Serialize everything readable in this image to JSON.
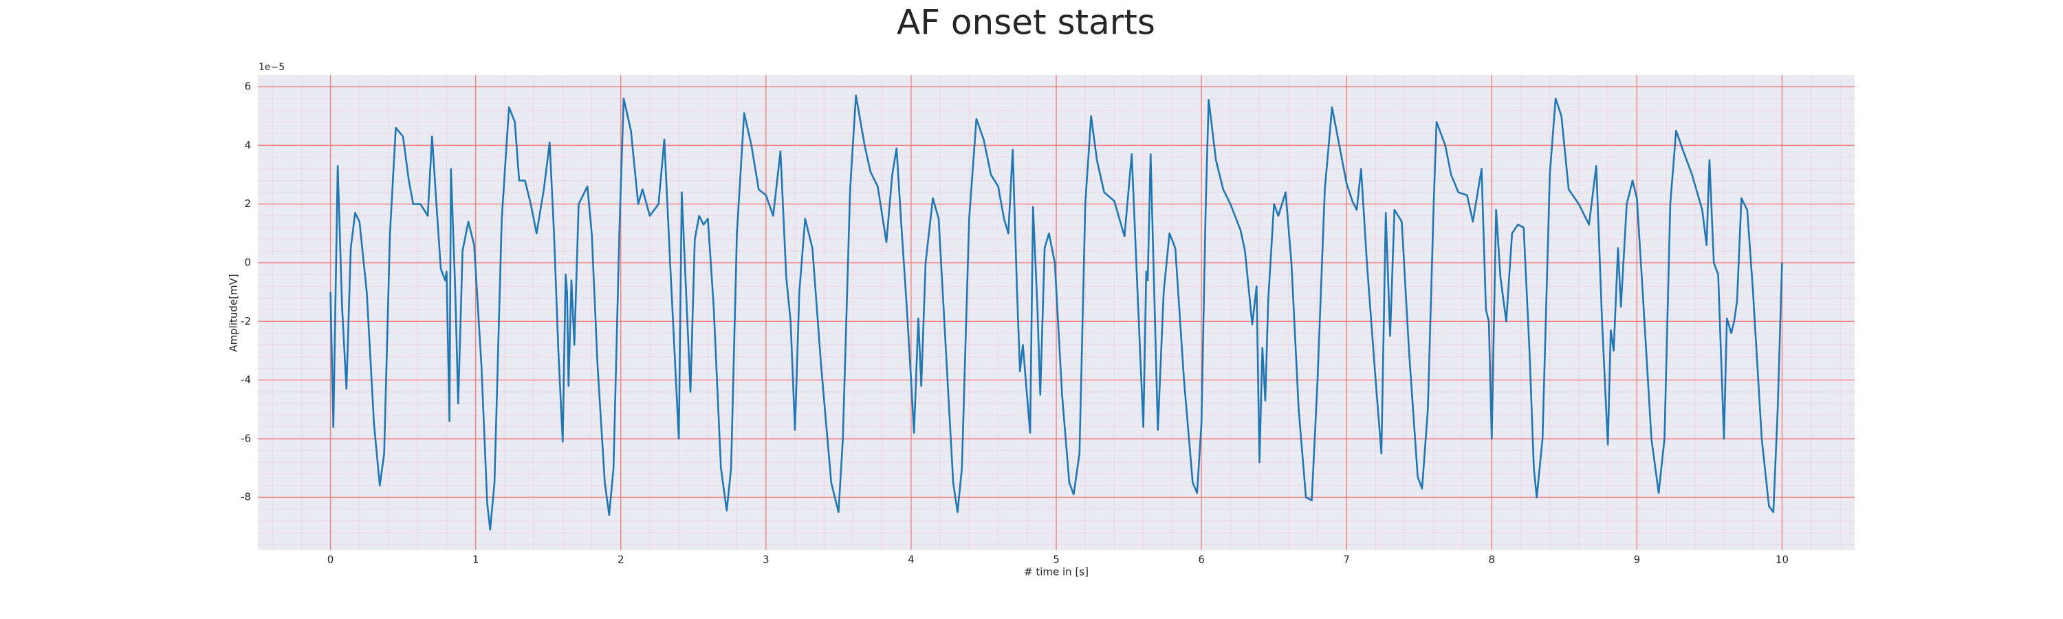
{
  "chart_data": {
    "type": "line",
    "title": "AF onset starts",
    "x_label": "# time in [s]",
    "y_label": "Amplitude[mV]",
    "y_offset_label": "1e−5",
    "xlim": [
      -0.5,
      10.5
    ],
    "xticks": [
      0,
      1,
      2,
      3,
      4,
      5,
      6,
      7,
      8,
      9,
      10
    ],
    "ylim": [
      -9.8,
      6.4
    ],
    "yticks": [
      -8,
      -6,
      -4,
      -2,
      0,
      2,
      4,
      6
    ],
    "grid": true,
    "minor_grid": true,
    "color": "#1f77b4",
    "x": [
      0,
      0.02,
      0.05,
      0.08,
      0.11,
      0.14,
      0.17,
      0.2,
      0.25,
      0.3,
      0.34,
      0.37,
      0.41,
      0.45,
      0.5,
      0.54,
      0.57,
      0.62,
      0.67,
      0.7,
      0.73,
      0.76,
      0.79,
      0.8,
      0.82,
      0.83,
      0.86,
      0.88,
      0.91,
      0.95,
      0.99,
      1.04,
      1.08,
      1.1,
      1.13,
      1.18,
      1.23,
      1.27,
      1.3,
      1.34,
      1.38,
      1.42,
      1.47,
      1.51,
      1.54,
      1.57,
      1.6,
      1.62,
      1.63,
      1.64,
      1.66,
      1.68,
      1.71,
      1.77,
      1.8,
      1.84,
      1.89,
      1.92,
      1.95,
      1.99,
      2.02,
      2.07,
      2.12,
      2.15,
      2.2,
      2.26,
      2.3,
      2.34,
      2.37,
      2.4,
      2.42,
      2.45,
      2.48,
      2.51,
      2.54,
      2.57,
      2.6,
      2.64,
      2.69,
      2.73,
      2.76,
      2.8,
      2.85,
      2.9,
      2.95,
      3.0,
      3.05,
      3.1,
      3.14,
      3.17,
      3.2,
      3.23,
      3.27,
      3.32,
      3.38,
      3.45,
      3.5,
      3.53,
      3.58,
      3.62,
      3.68,
      3.72,
      3.77,
      3.83,
      3.87,
      3.9,
      3.93,
      3.97,
      4.0,
      4.02,
      4.05,
      4.07,
      4.1,
      4.15,
      4.19,
      4.24,
      4.29,
      4.32,
      4.35,
      4.4,
      4.45,
      4.5,
      4.55,
      4.6,
      4.64,
      4.67,
      4.7,
      4.73,
      4.75,
      4.77,
      4.82,
      4.84,
      4.87,
      4.89,
      4.92,
      4.95,
      4.99,
      5.04,
      5.09,
      5.12,
      5.16,
      5.2,
      5.24,
      5.28,
      5.33,
      5.4,
      5.47,
      5.52,
      5.56,
      5.6,
      5.62,
      5.63,
      5.65,
      5.7,
      5.74,
      5.78,
      5.82,
      5.88,
      5.94,
      5.97,
      6.0,
      6.03,
      6.05,
      6.1,
      6.15,
      6.2,
      6.27,
      6.3,
      6.35,
      6.38,
      6.4,
      6.42,
      6.44,
      6.46,
      6.5,
      6.53,
      6.58,
      6.62,
      6.67,
      6.72,
      6.76,
      6.8,
      6.85,
      6.9,
      6.95,
      7.0,
      7.04,
      7.07,
      7.1,
      7.14,
      7.2,
      7.24,
      7.27,
      7.3,
      7.33,
      7.38,
      7.43,
      7.49,
      7.52,
      7.56,
      7.6,
      7.62,
      7.68,
      7.72,
      7.77,
      7.83,
      7.87,
      7.93,
      7.96,
      7.98,
      8.0,
      8.03,
      8.06,
      8.1,
      8.14,
      8.18,
      8.22,
      8.26,
      8.29,
      8.31,
      8.35,
      8.4,
      8.44,
      8.48,
      8.53,
      8.6,
      8.67,
      8.72,
      8.76,
      8.8,
      8.82,
      8.84,
      8.87,
      8.89,
      8.93,
      8.97,
      9.0,
      9.04,
      9.1,
      9.15,
      9.19,
      9.23,
      9.27,
      9.32,
      9.38,
      9.45,
      9.48,
      9.5,
      9.53,
      9.56,
      9.6,
      9.62,
      9.65,
      9.67,
      9.69,
      9.72,
      9.76,
      9.8,
      9.86,
      9.91,
      9.94,
      9.97,
      10.0
    ],
    "values": [
      -1.0,
      -5.6,
      3.3,
      -1.5,
      -4.3,
      0.5,
      1.7,
      1.4,
      -1.0,
      -5.5,
      -7.6,
      -6.5,
      1.0,
      4.6,
      4.3,
      2.8,
      2.0,
      2.0,
      1.6,
      4.3,
      2.0,
      -0.2,
      -0.6,
      -0.3,
      -5.4,
      3.2,
      -1.0,
      -4.8,
      0.4,
      1.4,
      0.6,
      -3.5,
      -8.2,
      -9.1,
      -7.5,
      1.5,
      5.3,
      4.8,
      2.8,
      2.8,
      2.0,
      1.0,
      2.5,
      4.1,
      1.0,
      -3.0,
      -6.1,
      -0.4,
      -1.0,
      -4.2,
      -0.6,
      -2.8,
      2.0,
      2.6,
      1.0,
      -3.5,
      -7.5,
      -8.6,
      -7.0,
      1.0,
      5.6,
      4.5,
      2.0,
      2.5,
      1.6,
      2.0,
      4.2,
      0.0,
      -3.0,
      -6.0,
      2.4,
      -1.0,
      -4.4,
      0.8,
      1.6,
      1.3,
      1.5,
      -1.5,
      -7.0,
      -8.45,
      -7.0,
      1.0,
      5.1,
      4.0,
      2.5,
      2.3,
      1.6,
      3.8,
      -0.5,
      -2.0,
      -5.7,
      -1.0,
      1.5,
      0.5,
      -3.5,
      -7.5,
      -8.5,
      -6.0,
      2.5,
      5.7,
      4.0,
      3.1,
      2.6,
      0.7,
      3.0,
      3.9,
      1.5,
      -1.5,
      -4.0,
      -5.8,
      -1.9,
      -4.2,
      0.0,
      2.2,
      1.5,
      -3.0,
      -7.5,
      -8.5,
      -7.0,
      1.5,
      4.9,
      4.2,
      3.0,
      2.6,
      1.5,
      1.0,
      3.85,
      -1.0,
      -3.7,
      -2.8,
      -5.8,
      1.9,
      -1.5,
      -4.5,
      0.5,
      1.0,
      0.0,
      -4.5,
      -7.5,
      -7.9,
      -6.5,
      2.0,
      5.0,
      3.5,
      2.4,
      2.1,
      0.9,
      3.7,
      -1.0,
      -5.6,
      -0.3,
      -0.6,
      3.7,
      -5.7,
      -1.0,
      1.0,
      0.5,
      -4.0,
      -7.5,
      -7.85,
      -5.5,
      2.0,
      5.55,
      3.5,
      2.5,
      2.0,
      1.1,
      0.4,
      -2.1,
      -0.8,
      -6.8,
      -2.9,
      -4.7,
      -1.3,
      2.0,
      1.6,
      2.4,
      0.0,
      -5.0,
      -8.0,
      -8.1,
      -4.0,
      2.5,
      5.3,
      4.0,
      2.7,
      2.1,
      1.8,
      3.2,
      0.0,
      -4.0,
      -6.5,
      1.7,
      -2.5,
      1.8,
      1.4,
      -3.0,
      -7.3,
      -7.7,
      -5.0,
      2.0,
      4.8,
      4.0,
      3.0,
      2.4,
      2.3,
      1.4,
      3.2,
      -1.6,
      -2.0,
      -6.0,
      1.8,
      -0.5,
      -2.0,
      1.0,
      1.3,
      1.2,
      -3.0,
      -7.0,
      -8.0,
      -6.0,
      3.0,
      5.6,
      5.0,
      2.5,
      2.0,
      1.3,
      3.3,
      -2.0,
      -6.2,
      -2.3,
      -3.0,
      0.5,
      -1.5,
      2.0,
      2.8,
      2.2,
      -1.0,
      -6.0,
      -7.85,
      -6.0,
      2.0,
      4.5,
      3.8,
      3.0,
      1.8,
      0.6,
      3.5,
      0.0,
      -0.4,
      -6.0,
      -1.9,
      -2.4,
      -2.0,
      -1.3,
      2.2,
      1.8,
      -1.0,
      -6.0,
      -8.3,
      -8.5,
      -5.0,
      0.0
    ]
  }
}
